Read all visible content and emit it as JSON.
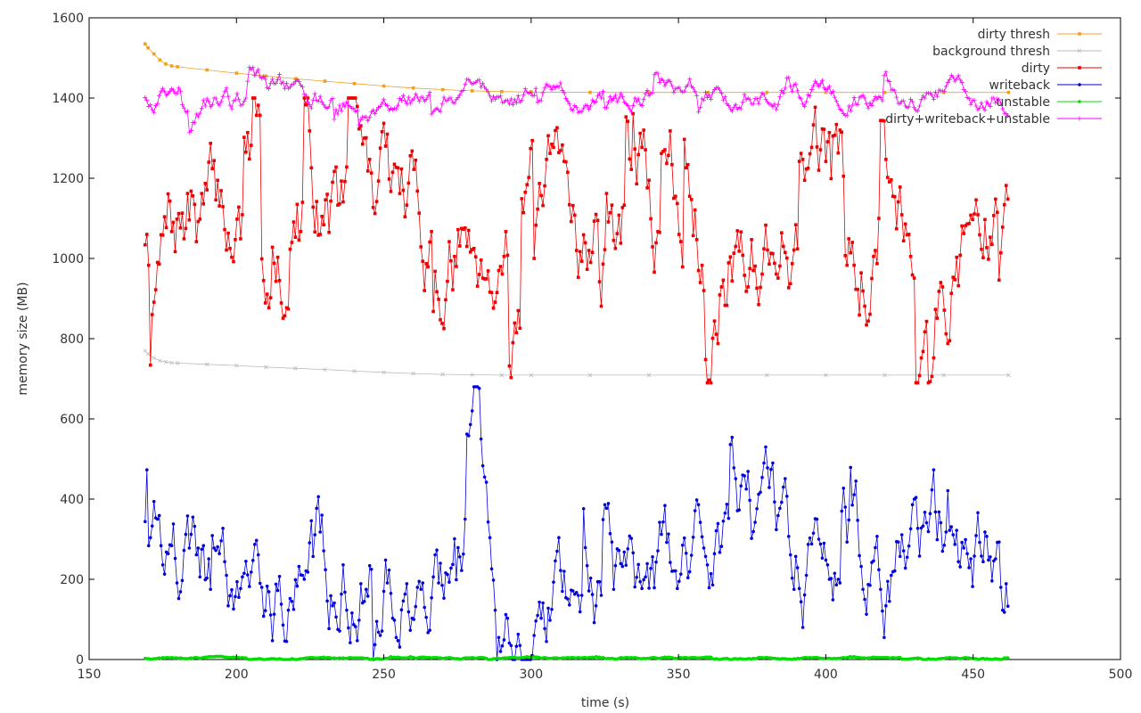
{
  "chart_data": {
    "type": "line",
    "title": "",
    "xlabel": "time (s)",
    "ylabel": "memory size (MB)",
    "xlim": [
      150,
      500
    ],
    "ylim": [
      0,
      1600
    ],
    "xticks": [
      150,
      200,
      250,
      300,
      350,
      400,
      450,
      500
    ],
    "yticks": [
      0,
      200,
      400,
      600,
      800,
      1000,
      1200,
      1400,
      1600
    ],
    "grid": false,
    "legend_position": "top-right",
    "x_start": 169,
    "x_end": 462,
    "series": [
      {
        "name": "dirty thresh",
        "color": "#f0a020",
        "marker": "square",
        "x": [
          169,
          170,
          172,
          174,
          176,
          178,
          180,
          190,
          200,
          210,
          220,
          230,
          240,
          250,
          260,
          270,
          280,
          290,
          300,
          320,
          340,
          360,
          380,
          400,
          420,
          440,
          462
        ],
        "y": [
          1535,
          1525,
          1510,
          1495,
          1485,
          1480,
          1478,
          1470,
          1462,
          1455,
          1448,
          1442,
          1436,
          1430,
          1425,
          1421,
          1418,
          1416,
          1415,
          1414,
          1414,
          1414,
          1414,
          1414,
          1414,
          1414,
          1414
        ]
      },
      {
        "name": "background thresh",
        "color": "#bbbbbb",
        "marker": "x",
        "x": [
          169,
          170,
          172,
          174,
          176,
          178,
          180,
          190,
          200,
          210,
          220,
          230,
          240,
          250,
          260,
          270,
          280,
          290,
          300,
          320,
          340,
          360,
          380,
          400,
          420,
          440,
          462
        ],
        "y": [
          770,
          762,
          752,
          745,
          742,
          740,
          739,
          736,
          733,
          729,
          726,
          723,
          719,
          716,
          713,
          711,
          710,
          709,
          709,
          709,
          709,
          709,
          709,
          709,
          709,
          709,
          709
        ]
      },
      {
        "name": "dirty",
        "color": "#ee0000",
        "marker": "square",
        "style": {
          "base": 1080,
          "amplitude": 220,
          "min": 690,
          "max": 1400,
          "seed": 7
        },
        "x": [],
        "y": []
      },
      {
        "name": "writeback",
        "color": "#0000dd",
        "marker": "circle",
        "style": {
          "base": 220,
          "amplitude": 200,
          "min": 0,
          "max": 680,
          "seed": 19
        },
        "x": [],
        "y": []
      },
      {
        "name": "unstable",
        "color": "#00dd00",
        "marker": "circle",
        "style": {
          "base": 4,
          "amplitude": 3,
          "min": 0,
          "max": 15,
          "seed": 31
        },
        "x": [],
        "y": []
      },
      {
        "name": "dirty+writeback+unstable",
        "color": "#ff00ff",
        "marker": "plus",
        "style": {
          "base": 1410,
          "amplitude": 45,
          "min": 1280,
          "max": 1510,
          "seed": 43
        },
        "x": [],
        "y": []
      }
    ]
  }
}
